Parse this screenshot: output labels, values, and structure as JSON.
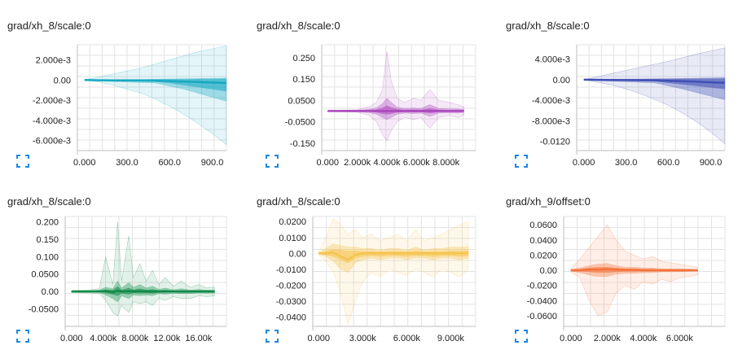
{
  "chart_data": [
    {
      "type": "area",
      "title": "grad/xh_8/scale:0",
      "color": "#17a9c2",
      "xlim": [
        -50,
        1000
      ],
      "ylim": [
        -0.007,
        0.0035
      ],
      "x_ticks": [
        0,
        300,
        600,
        900
      ],
      "x_tick_labels": [
        "0.000",
        "300.0",
        "600.0",
        "900.0"
      ],
      "y_ticks": [
        0.002,
        0,
        -0.002,
        -0.004,
        -0.006
      ],
      "y_tick_labels": [
        "2.000e-3",
        "0.00",
        "-2.000e-3",
        "-4.000e-3",
        "-6.000e-3"
      ],
      "x": [
        0,
        100,
        200,
        300,
        400,
        500,
        600,
        700,
        800,
        900,
        999
      ],
      "bands": [
        {
          "lower": [
            0,
            -0.0002,
            -0.0005,
            -0.0009,
            -0.0013,
            -0.0019,
            -0.0026,
            -0.0034,
            -0.0043,
            -0.0053,
            -0.0064
          ],
          "upper": [
            0,
            0.0003,
            0.0006,
            0.0009,
            0.0012,
            0.0016,
            0.002,
            0.0024,
            0.0028,
            0.0031,
            0.0034
          ]
        },
        {
          "lower": [
            0,
            -0.0001,
            -0.00015,
            -0.0002,
            -0.00025,
            -0.0003,
            -0.0006,
            -0.0009,
            -0.0013,
            -0.0017,
            -0.0021
          ],
          "upper": [
            0,
            2e-05,
            4e-05,
            5e-05,
            6e-05,
            8e-05,
            0.0001,
            0.00012,
            0.00015,
            0.00017,
            0.0002
          ]
        },
        {
          "lower": [
            0,
            -5e-05,
            -8e-05,
            -0.0001,
            -0.00012,
            -0.00015,
            -0.0003,
            -0.0005,
            -0.0007,
            -0.0009,
            -0.0011
          ],
          "upper": [
            0,
            1e-05,
            2e-05,
            3e-05,
            4e-05,
            5e-05,
            6e-05,
            7e-05,
            8e-05,
            9e-05,
            0.0001
          ]
        }
      ],
      "median": [
        0,
        -2e-05,
        -3e-05,
        -4e-05,
        -5e-05,
        -6e-05,
        -0.0001,
        -0.00015,
        -0.0002,
        -0.00025,
        -0.0003
      ]
    },
    {
      "type": "area",
      "title": "grad/xh_8/scale:0",
      "color": "#ab47bc",
      "xlim": [
        -400,
        10000
      ],
      "ylim": [
        -0.185,
        0.31
      ],
      "x_ticks": [
        0,
        2000,
        4000,
        6000,
        8000
      ],
      "x_tick_labels": [
        "0.000",
        "2.000k",
        "4.000k",
        "6.000k",
        "8.000k"
      ],
      "y_ticks": [
        0.25,
        0.15,
        0.05,
        -0.05,
        -0.15
      ],
      "y_tick_labels": [
        "0.250",
        "0.150",
        "0.0500",
        "-0.0500",
        "-0.150"
      ],
      "x": [
        0,
        1000,
        2000,
        2800,
        3300,
        3700,
        4000,
        4300,
        4700,
        5200,
        5800,
        6300,
        6900,
        7500,
        8200,
        8800,
        9200
      ],
      "bands": [
        {
          "lower": [
            -0.002,
            -0.004,
            -0.006,
            -0.02,
            -0.05,
            -0.11,
            -0.14,
            -0.09,
            -0.05,
            -0.03,
            -0.04,
            -0.03,
            -0.08,
            -0.03,
            -0.02,
            -0.03,
            -0.02
          ],
          "upper": [
            0.002,
            0.004,
            0.006,
            0.02,
            0.04,
            0.1,
            0.28,
            0.14,
            0.06,
            0.04,
            0.06,
            0.05,
            0.1,
            0.05,
            0.04,
            0.03,
            0.02
          ]
        },
        {
          "lower": [
            -0.001,
            -0.002,
            -0.003,
            -0.008,
            -0.015,
            -0.03,
            -0.04,
            -0.03,
            -0.015,
            -0.01,
            -0.012,
            -0.01,
            -0.025,
            -0.01,
            -0.008,
            -0.01,
            -0.006
          ],
          "upper": [
            0.001,
            0.002,
            0.003,
            0.008,
            0.015,
            0.035,
            0.06,
            0.04,
            0.018,
            0.012,
            0.015,
            0.012,
            0.03,
            0.012,
            0.01,
            0.01,
            0.006
          ]
        },
        {
          "lower": [
            -0.0005,
            -0.001,
            -0.0015,
            -0.003,
            -0.006,
            -0.012,
            -0.015,
            -0.012,
            -0.006,
            -0.004,
            -0.005,
            -0.004,
            -0.01,
            -0.004,
            -0.003,
            -0.004,
            -0.003
          ],
          "upper": [
            0.0005,
            0.001,
            0.0015,
            0.003,
            0.006,
            0.014,
            0.025,
            0.016,
            0.008,
            0.005,
            0.006,
            0.005,
            0.012,
            0.005,
            0.004,
            0.004,
            0.003
          ]
        }
      ],
      "median": [
        0,
        0,
        0,
        0,
        0,
        0,
        0,
        0,
        0,
        0,
        0,
        0,
        0,
        0,
        0,
        0,
        0
      ]
    },
    {
      "type": "area",
      "title": "grad/xh_8/scale:0",
      "color": "#3f51b5",
      "xlim": [
        -50,
        1000
      ],
      "ylim": [
        -0.0138,
        0.0068
      ],
      "x_ticks": [
        0,
        300,
        600,
        900
      ],
      "x_tick_labels": [
        "0.000",
        "300.0",
        "600.0",
        "900.0"
      ],
      "y_ticks": [
        0.004,
        0,
        -0.004,
        -0.008,
        -0.012
      ],
      "y_tick_labels": [
        "4.000e-3",
        "0.00",
        "-4.000e-3",
        "-8.000e-3",
        "-0.0120"
      ],
      "x": [
        0,
        100,
        200,
        300,
        400,
        500,
        600,
        700,
        800,
        900,
        999
      ],
      "bands": [
        {
          "lower": [
            0,
            -0.0005,
            -0.001,
            -0.0018,
            -0.0027,
            -0.0038,
            -0.005,
            -0.0065,
            -0.0082,
            -0.0102,
            -0.0125
          ],
          "upper": [
            0,
            0.0006,
            0.0012,
            0.0018,
            0.0024,
            0.003,
            0.0036,
            0.0043,
            0.005,
            0.0056,
            0.0062
          ]
        },
        {
          "lower": [
            0,
            -0.0002,
            -0.0003,
            -0.0004,
            -0.0005,
            -0.0006,
            -0.0012,
            -0.0018,
            -0.0025,
            -0.0032,
            -0.0039
          ],
          "upper": [
            0,
            5e-05,
            0.0001,
            0.00012,
            0.00015,
            0.00018,
            0.00022,
            0.00026,
            0.0003,
            0.00034,
            0.0004
          ]
        },
        {
          "lower": [
            0,
            -0.0001,
            -0.00015,
            -0.0002,
            -0.00025,
            -0.0003,
            -0.0006,
            -0.0009,
            -0.0012,
            -0.0015,
            -0.0018
          ],
          "upper": [
            0,
            2e-05,
            4e-05,
            6e-05,
            8e-05,
            0.0001,
            0.00012,
            0.00014,
            0.00016,
            0.00018,
            0.0002
          ]
        }
      ],
      "median": [
        0,
        -3e-05,
        -5e-05,
        -7e-05,
        -9e-05,
        -0.00011,
        -0.0002,
        -0.0003,
        -0.0004,
        -0.0005,
        -0.0006
      ]
    },
    {
      "type": "area",
      "title": "grad/xh_8/scale:0",
      "color": "#0f8a47",
      "xlim": [
        -800,
        19500
      ],
      "ylim": [
        -0.1,
        0.215
      ],
      "x_ticks": [
        0,
        4000,
        8000,
        12000,
        16000
      ],
      "x_tick_labels": [
        "0.000",
        "4.000k",
        "8.000k",
        "12.00k",
        "16.00k"
      ],
      "y_ticks": [
        0.2,
        0.15,
        0.1,
        0.05,
        0,
        -0.05
      ],
      "y_tick_labels": [
        "0.200",
        "0.150",
        "0.100",
        "0.0500",
        "0.00",
        "-0.0500"
      ],
      "x": [
        0,
        2000,
        3500,
        4300,
        5200,
        5800,
        6300,
        7200,
        7800,
        8600,
        9400,
        10200,
        11000,
        11800,
        12800,
        13800,
        15000,
        16000,
        17000,
        18000
      ],
      "bands": [
        {
          "lower": [
            -0.003,
            -0.004,
            -0.006,
            -0.025,
            -0.06,
            -0.07,
            -0.04,
            -0.06,
            -0.03,
            -0.035,
            -0.03,
            -0.04,
            -0.02,
            -0.025,
            -0.015,
            -0.02,
            -0.02,
            -0.012,
            -0.015,
            -0.012
          ],
          "upper": [
            0.003,
            0.004,
            0.008,
            0.1,
            0.02,
            0.2,
            0.03,
            0.16,
            0.04,
            0.08,
            0.03,
            0.06,
            0.02,
            0.04,
            0.015,
            0.03,
            0.012,
            0.02,
            0.01,
            0.012
          ]
        },
        {
          "lower": [
            -0.001,
            -0.002,
            -0.003,
            -0.01,
            -0.02,
            -0.03,
            -0.012,
            -0.02,
            -0.01,
            -0.012,
            -0.01,
            -0.012,
            -0.006,
            -0.008,
            -0.005,
            -0.006,
            -0.006,
            -0.004,
            -0.005,
            -0.004
          ],
          "upper": [
            0.001,
            0.002,
            0.004,
            0.012,
            0.008,
            0.03,
            0.01,
            0.025,
            0.012,
            0.02,
            0.01,
            0.015,
            0.006,
            0.01,
            0.005,
            0.008,
            0.004,
            0.006,
            0.004,
            0.004
          ]
        },
        {
          "lower": [
            -0.0005,
            -0.001,
            -0.0015,
            -0.004,
            -0.008,
            -0.012,
            -0.005,
            -0.008,
            -0.004,
            -0.005,
            -0.004,
            -0.005,
            -0.003,
            -0.003,
            -0.002,
            -0.003,
            -0.003,
            -0.002,
            -0.002,
            -0.002
          ],
          "upper": [
            0.0005,
            0.001,
            0.002,
            0.005,
            0.004,
            0.014,
            0.004,
            0.01,
            0.005,
            0.008,
            0.004,
            0.006,
            0.003,
            0.004,
            0.002,
            0.003,
            0.002,
            0.003,
            0.002,
            0.002
          ]
        }
      ],
      "median": [
        0,
        0,
        0,
        0.001,
        -0.002,
        0.002,
        0,
        0.001,
        0,
        0.001,
        0,
        0,
        0,
        0,
        0,
        0,
        0,
        0,
        0,
        0
      ]
    },
    {
      "type": "area",
      "title": "grad/xh_8/scale:0",
      "color": "#f6c44f",
      "xlim": [
        -400,
        10700
      ],
      "ylim": [
        -0.046,
        0.0232
      ],
      "x_ticks": [
        0,
        3000,
        6000,
        9000
      ],
      "x_tick_labels": [
        "0.000",
        "3.000k",
        "6.000k",
        "9.000k"
      ],
      "y_ticks": [
        0.02,
        0.01,
        0,
        -0.01,
        -0.02,
        -0.03,
        -0.04
      ],
      "y_tick_labels": [
        "0.0200",
        "0.0100",
        "0.00",
        "-0.0100",
        "-0.0200",
        "-0.0300",
        "-0.0400"
      ],
      "x": [
        0,
        500,
        1000,
        1500,
        2000,
        2500,
        3000,
        3600,
        4200,
        4800,
        5400,
        6000,
        6600,
        7200,
        7800,
        8400,
        9000,
        9600,
        10200
      ],
      "bands": [
        {
          "lower": [
            -0.001,
            -0.005,
            -0.012,
            -0.025,
            -0.045,
            -0.03,
            -0.018,
            -0.012,
            -0.015,
            -0.01,
            -0.012,
            -0.014,
            -0.01,
            -0.012,
            -0.015,
            -0.01,
            -0.012,
            -0.015,
            -0.01
          ],
          "upper": [
            0.001,
            0.01,
            0.022,
            0.018,
            0.012,
            0.015,
            0.01,
            0.012,
            0.008,
            0.01,
            0.012,
            0.008,
            0.015,
            0.008,
            0.01,
            0.012,
            0.015,
            0.018,
            0.02
          ]
        },
        {
          "lower": [
            -0.0005,
            -0.002,
            -0.005,
            -0.01,
            -0.012,
            -0.006,
            -0.004,
            -0.003,
            -0.004,
            -0.003,
            -0.003,
            -0.004,
            -0.003,
            -0.003,
            -0.004,
            -0.003,
            -0.003,
            -0.004,
            -0.003
          ],
          "upper": [
            0.0005,
            0.003,
            0.006,
            0.005,
            0.004,
            0.004,
            0.003,
            0.003,
            0.002,
            0.003,
            0.003,
            0.002,
            0.004,
            0.002,
            0.003,
            0.003,
            0.004,
            0.004,
            0.004
          ]
        },
        {
          "lower": [
            -0.0002,
            -0.001,
            -0.002,
            -0.004,
            -0.006,
            -0.003,
            -0.002,
            -0.0015,
            -0.002,
            -0.0015,
            -0.0015,
            -0.002,
            -0.0015,
            -0.0015,
            -0.002,
            -0.0015,
            -0.0015,
            -0.002,
            -0.0015
          ],
          "upper": [
            0.0002,
            0.0012,
            0.0025,
            0.002,
            0.0015,
            0.0015,
            0.0012,
            0.0012,
            0.001,
            0.0012,
            0.0012,
            0.001,
            0.0015,
            0.001,
            0.0012,
            0.0012,
            0.0015,
            0.0015,
            0.0015
          ]
        }
      ],
      "median": [
        0,
        0,
        0.0005,
        -0.002,
        -0.004,
        -0.001,
        0,
        0,
        0,
        0,
        0,
        0,
        0,
        0,
        0,
        0,
        0,
        0,
        0
      ]
    },
    {
      "type": "area",
      "title": "grad/xh_9/offset:0",
      "color": "#f4733b",
      "xlim": [
        -400,
        8500
      ],
      "ylim": [
        -0.074,
        0.071
      ],
      "x_ticks": [
        0,
        2000,
        4000,
        6000
      ],
      "x_tick_labels": [
        "0.000",
        "2.000k",
        "4.000k",
        "6.000k"
      ],
      "y_ticks": [
        0.06,
        0.04,
        0.02,
        0,
        -0.02,
        -0.04,
        -0.06
      ],
      "y_tick_labels": [
        "0.0600",
        "0.0400",
        "0.0200",
        "0.00",
        "-0.0200",
        "-0.0400",
        "-0.0600"
      ],
      "x": [
        0,
        500,
        1000,
        1500,
        2000,
        2500,
        3000,
        3500,
        4000,
        4500,
        5000,
        5500,
        6000,
        6500,
        7000
      ],
      "bands": [
        {
          "lower": [
            -0.002,
            -0.01,
            -0.04,
            -0.06,
            -0.055,
            -0.03,
            -0.02,
            -0.025,
            -0.015,
            -0.018,
            -0.012,
            -0.015,
            -0.01,
            -0.008,
            -0.006
          ],
          "upper": [
            0.002,
            0.015,
            0.03,
            0.045,
            0.06,
            0.04,
            0.025,
            0.02,
            0.015,
            0.018,
            0.012,
            0.01,
            0.008,
            0.006,
            0.004
          ]
        },
        {
          "lower": [
            -0.001,
            -0.003,
            -0.006,
            -0.008,
            -0.008,
            -0.005,
            -0.004,
            -0.004,
            -0.003,
            -0.003,
            -0.002,
            -0.002,
            -0.002,
            -0.0015,
            -0.001
          ],
          "upper": [
            0.001,
            0.003,
            0.006,
            0.008,
            0.009,
            0.006,
            0.004,
            0.004,
            0.003,
            0.003,
            0.002,
            0.002,
            0.002,
            0.0015,
            0.001
          ]
        },
        {
          "lower": [
            -0.0005,
            -0.001,
            -0.002,
            -0.003,
            -0.003,
            -0.002,
            -0.0015,
            -0.0015,
            -0.001,
            -0.001,
            -0.001,
            -0.001,
            -0.001,
            -0.0008,
            -0.0005
          ],
          "upper": [
            0.0005,
            0.0015,
            0.003,
            0.004,
            0.004,
            0.003,
            0.002,
            0.002,
            0.0015,
            0.0015,
            0.001,
            0.001,
            0.001,
            0.0008,
            0.0005
          ]
        }
      ],
      "median": [
        0,
        0,
        0.001,
        0.001,
        0.0015,
        0.001,
        0.0005,
        0.0005,
        0,
        0,
        0,
        0,
        0,
        0,
        0
      ]
    }
  ]
}
